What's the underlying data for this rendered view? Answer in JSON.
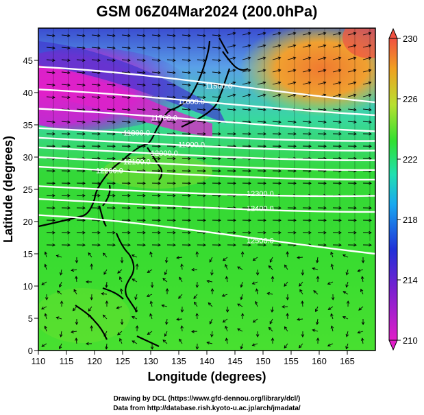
{
  "title": "GSM 06Z04Mar2024 (200.0hPa)",
  "x_axis": {
    "label": "Longitude (degrees)",
    "range": [
      110,
      170
    ],
    "ticks": [
      "110",
      "115",
      "120",
      "125",
      "130",
      "135",
      "140",
      "145",
      "150",
      "155",
      "160",
      "165"
    ]
  },
  "y_axis": {
    "label": "Latitude  (degrees)",
    "range": [
      0,
      50
    ],
    "ticks": [
      "0",
      "5",
      "10",
      "15",
      "20",
      "25",
      "30",
      "35",
      "40",
      "45"
    ]
  },
  "colorbar": {
    "ticks": [
      "210",
      "214",
      "218",
      "222",
      "226",
      "230"
    ],
    "colors": [
      "#e01ec8",
      "#3030d8",
      "#1aa0f0",
      "#20e0b0",
      "#30e030",
      "#b8e030",
      "#f0a020",
      "#f06040"
    ]
  },
  "contours": [
    {
      "label": "11500.0",
      "lat_at_110": 44.0,
      "lat_at_170": 38.5
    },
    {
      "label": "11600.0",
      "lat_at_110": 40.5,
      "lat_at_170": 36.5
    },
    {
      "label": "11700.0",
      "lat_at_110": 37.5,
      "lat_at_170": 34.0
    },
    {
      "label": "11800.0",
      "lat_at_110": 34.5,
      "lat_at_170": 32.5
    },
    {
      "label": "11900.0",
      "lat_at_110": 33.0,
      "lat_at_170": 31.0
    },
    {
      "label": "12000.0",
      "lat_at_110": 31.5,
      "lat_at_170": 29.5
    },
    {
      "label": "12100.0",
      "lat_at_110": 30.0,
      "lat_at_170": 28.0
    },
    {
      "label": "12200.0",
      "lat_at_110": 28.5,
      "lat_at_170": 26.5
    },
    {
      "label": "12300.0",
      "lat_at_110": 25.5,
      "lat_at_170": 24.0
    },
    {
      "label": "12400.0",
      "lat_at_110": 23.5,
      "lat_at_170": 21.5
    },
    {
      "label": "12500.0",
      "lat_at_110": 21.0,
      "lat_at_170": 15.0
    }
  ],
  "credits": {
    "line1": "Drawing by DCL (https://www.gfd-dennou.org/library/dcl/)",
    "line2": "Data from http://database.rish.kyoto-u.ac.jp/arch/jmadata/"
  }
}
